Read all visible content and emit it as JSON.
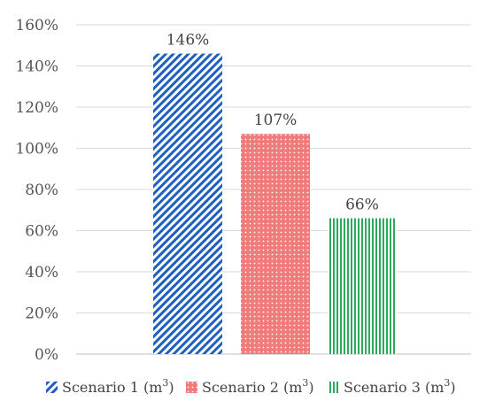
{
  "chart_data": {
    "type": "bar",
    "categories": [
      "Scenario 1",
      "Scenario 2",
      "Scenario 3"
    ],
    "values": [
      146,
      107,
      66
    ],
    "data_labels": [
      "146%",
      "107%",
      "66%"
    ],
    "y_ticks": [
      "0%",
      "20%",
      "40%",
      "60%",
      "80%",
      "100%",
      "120%",
      "140%",
      "160%"
    ],
    "ylim": [
      0,
      160
    ],
    "grid": true,
    "legend_position": "bottom",
    "legend": [
      {
        "label": "Scenario 1",
        "unit": "m",
        "sup": "3"
      },
      {
        "label": "Scenario 2",
        "unit": "m",
        "sup": "3"
      },
      {
        "label": "Scenario 3",
        "unit": "m",
        "sup": "3"
      }
    ],
    "colors": [
      "#1f5fbf",
      "#ef7b7b",
      "#2eaa5e"
    ]
  }
}
